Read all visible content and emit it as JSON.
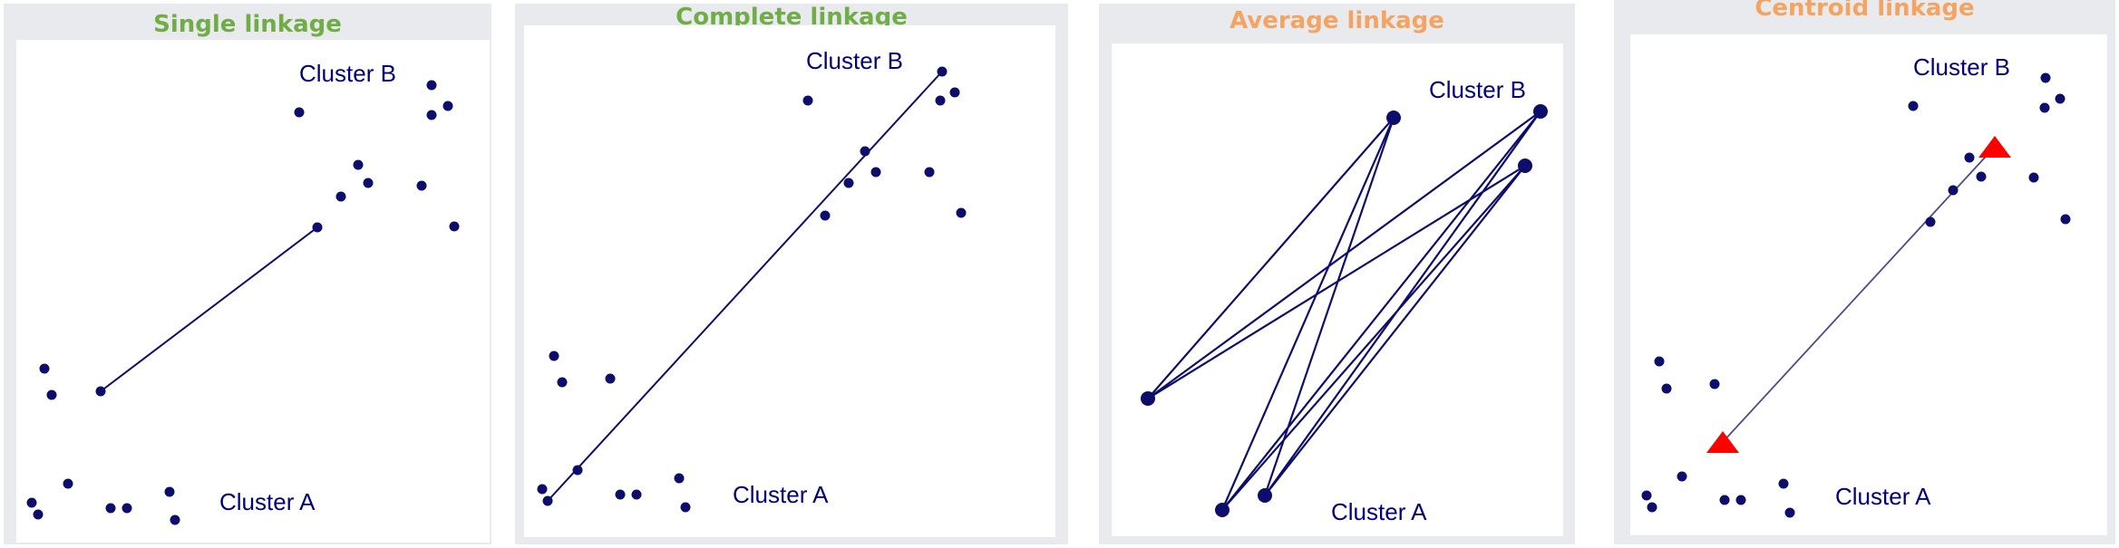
{
  "colors": {
    "panel_bg": "#e9eaee",
    "point": "#0d0d6b",
    "line": "#0d0d6b",
    "label": "#00007a",
    "title_green": "#70ad47",
    "title_orange": "#f4a460",
    "centroid": "#ff0000"
  },
  "panels": [
    {
      "id": "single",
      "title": "Single linkage",
      "title_color": "green",
      "cluster_a_label": "Cluster A",
      "cluster_b_label": "Cluster B"
    },
    {
      "id": "complete",
      "title": "Complete linkage",
      "title_color": "green",
      "cluster_a_label": "Cluster A",
      "cluster_b_label": "Cluster B"
    },
    {
      "id": "average",
      "title": "Average linkage",
      "title_color": "orange",
      "cluster_a_label": "Cluster A",
      "cluster_b_label": "Cluster B"
    },
    {
      "id": "centroid",
      "title": "Centroid linkage",
      "title_color": "orange",
      "cluster_a_label": "Cluster A",
      "cluster_b_label": "Cluster B",
      "marker": "red-triangle"
    }
  ]
}
